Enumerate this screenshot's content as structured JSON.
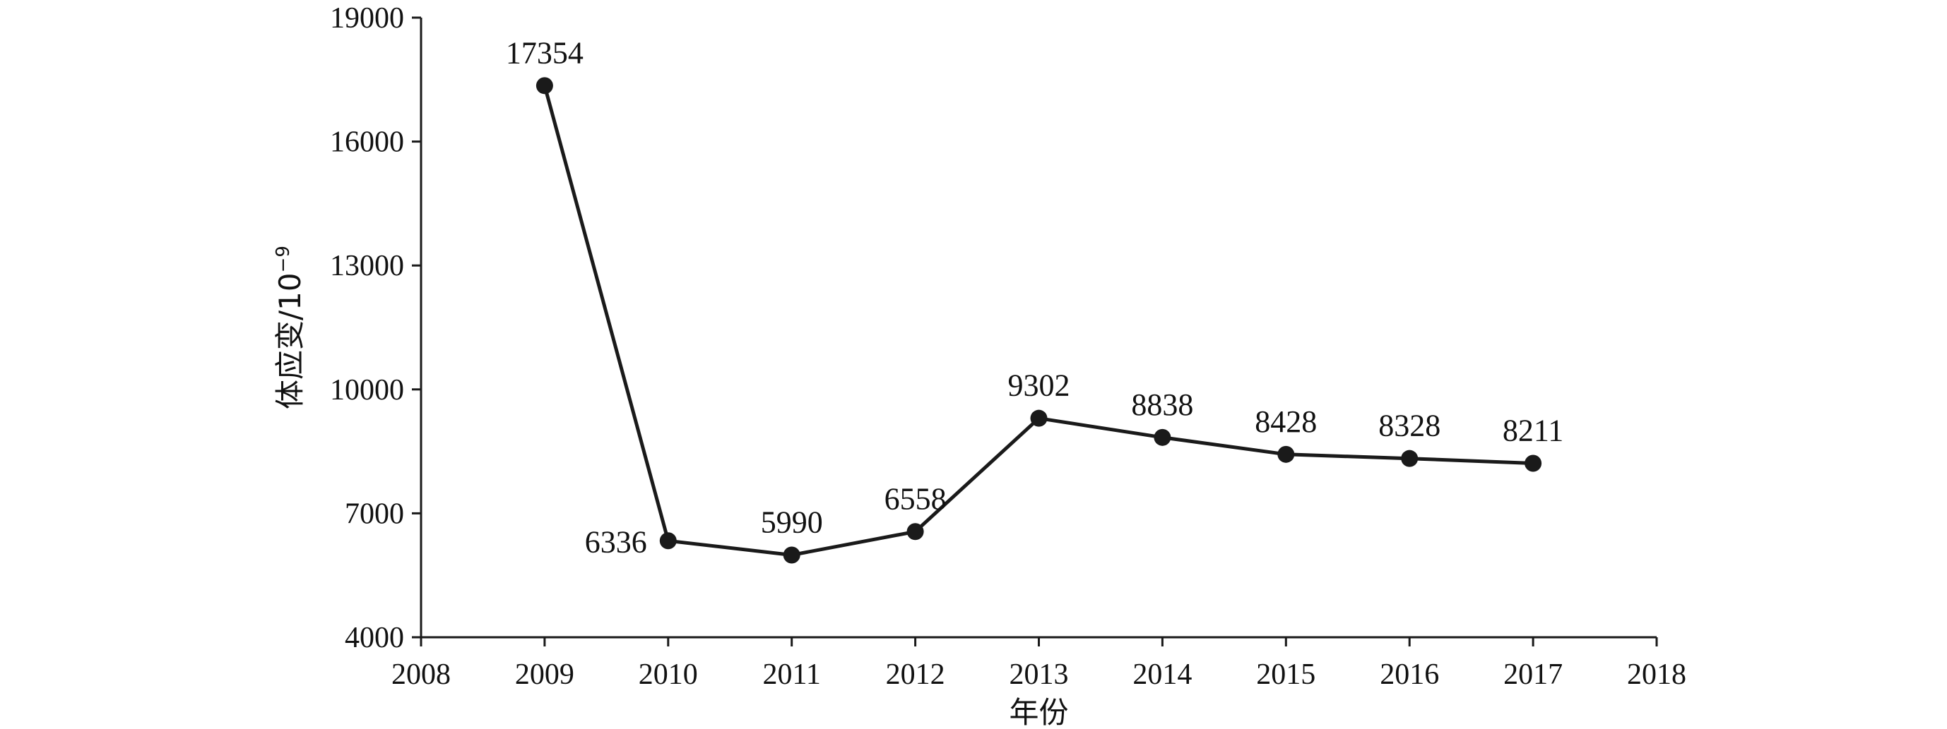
{
  "chart_data": {
    "type": "line",
    "xlabel": "年份",
    "ylabel": "体应变/10",
    "ylabel_exponent": "−9",
    "xlim": [
      2008,
      2018
    ],
    "ylim": [
      4000,
      19000
    ],
    "x_ticks": [
      "2008",
      "2009",
      "2010",
      "2011",
      "2012",
      "2013",
      "2014",
      "2015",
      "2016",
      "2017",
      "2018"
    ],
    "y_ticks": [
      "4000",
      "7000",
      "10000",
      "13000",
      "16000",
      "19000"
    ],
    "grid": false,
    "x": [
      2009,
      2010,
      2011,
      2012,
      2013,
      2014,
      2015,
      2016,
      2017
    ],
    "series": [
      {
        "values": [
          17354,
          6336,
          5990,
          6558,
          9302,
          8838,
          8428,
          8328,
          8211
        ],
        "labels": [
          "17354",
          "6336",
          "5990",
          "6558",
          "9302",
          "8838",
          "8428",
          "8328",
          "8211"
        ],
        "color": "#1a1a1a",
        "marker": "filled-circle"
      }
    ]
  }
}
